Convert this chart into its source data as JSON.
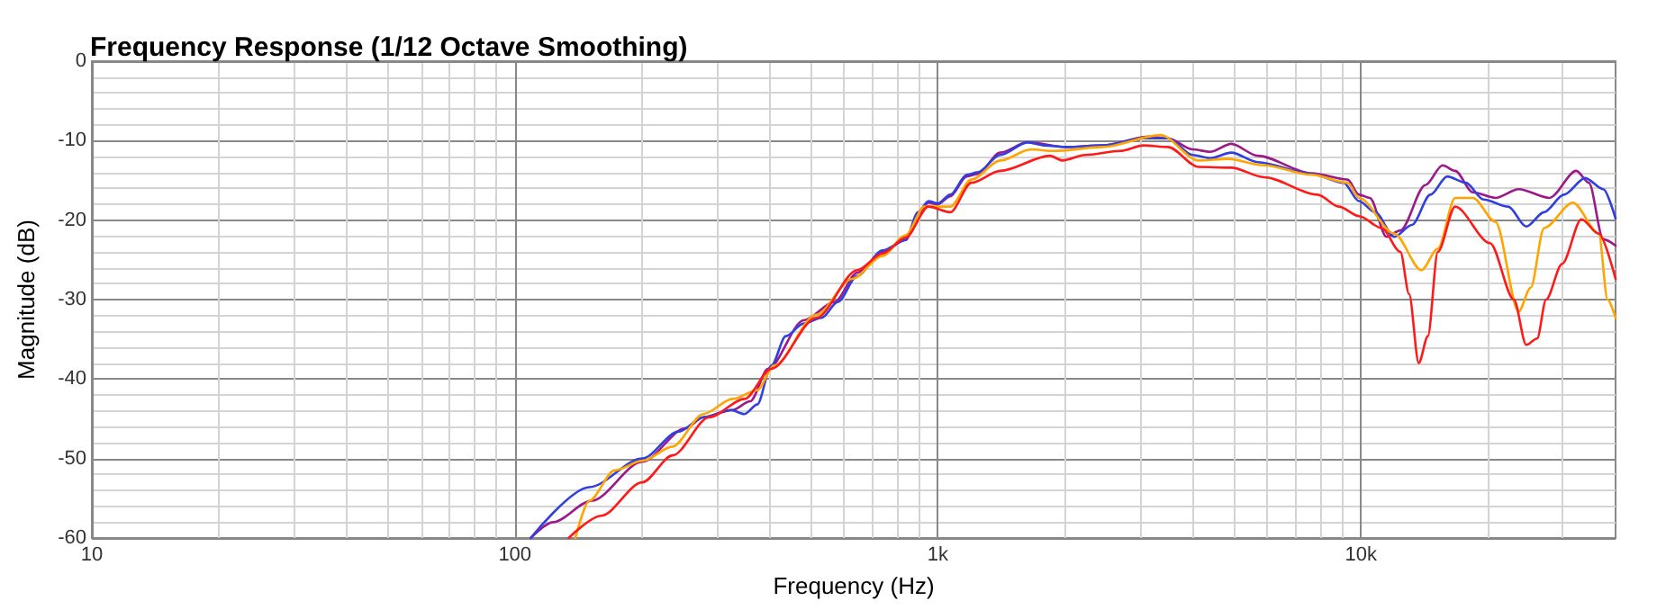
{
  "chart_data": {
    "type": "line",
    "title": "Frequency Response (1/12 Octave Smoothing)",
    "xlabel": "Frequency (Hz)",
    "ylabel": "Magnitude (dB)",
    "log": "x",
    "xlim": [
      10,
      40000
    ],
    "xticks": [
      10,
      100,
      {
        "value": 1000,
        "label": "1k"
      },
      {
        "value": 10000,
        "label": "10k"
      }
    ],
    "ylim": [
      -60,
      0
    ],
    "yticks": [
      -60,
      -50,
      -40,
      -30,
      -20,
      -10,
      0
    ],
    "grid": true,
    "marker": "none",
    "line_style": "solid",
    "series": [
      {
        "color": "#9b1a8a",
        "x": [
          109,
          123,
          152,
          200,
          253,
          279,
          327,
          360,
          397,
          482,
          570,
          645,
          740,
          839,
          897,
          950,
          1000,
          1070,
          1170,
          1240,
          1405,
          1630,
          2010,
          2450,
          3150,
          3500,
          4000,
          4400,
          4940,
          5700,
          7650,
          9300,
          9900,
          10500,
          11500,
          12400,
          14200,
          15600,
          16700,
          18400,
          20800,
          23600,
          27900,
          32300,
          34600,
          37400,
          40000
        ],
        "values": [
          -60,
          -58,
          -55.3,
          -50.4,
          -46.2,
          -44.8,
          -43.9,
          -42.8,
          -38.7,
          -32.6,
          -30.3,
          -26.6,
          -24,
          -22.5,
          -19.2,
          -17.8,
          -18,
          -17,
          -14.5,
          -14.2,
          -11.5,
          -10.2,
          -10.8,
          -10.6,
          -9.5,
          -9.7,
          -11.1,
          -11.4,
          -10.4,
          -11.9,
          -14.1,
          -14.9,
          -16.8,
          -17.2,
          -22.1,
          -21.3,
          -15.6,
          -13.1,
          -13.8,
          -16.5,
          -17.2,
          -16.1,
          -17.2,
          -13.8,
          -15.3,
          -22.4,
          -23.2
        ]
      },
      {
        "color": "#2f3fe0",
        "x": [
          109,
          150,
          200,
          244,
          279,
          324,
          349,
          374,
          404,
          437,
          482,
          531,
          580,
          645,
          740,
          839,
          897,
          950,
          1000,
          1070,
          1170,
          1240,
          1405,
          1630,
          1780,
          2010,
          2450,
          3060,
          3500,
          4000,
          4400,
          4940,
          5700,
          7650,
          9100,
          9900,
          10800,
          12000,
          13200,
          14600,
          16000,
          17700,
          19500,
          22300,
          24600,
          27100,
          30200,
          33900,
          37400,
          40000
        ],
        "values": [
          -60,
          -53.6,
          -50,
          -46.6,
          -44.8,
          -43.9,
          -44.4,
          -43.2,
          -38.3,
          -34.6,
          -33,
          -32.3,
          -30.3,
          -27,
          -23.8,
          -22.5,
          -19,
          -17.6,
          -17.9,
          -16.8,
          -14.3,
          -14,
          -11.8,
          -10.2,
          -10.6,
          -10.8,
          -10.6,
          -9.7,
          -9.7,
          -11.8,
          -12.2,
          -11.5,
          -12.7,
          -14.2,
          -15.3,
          -17.6,
          -19,
          -22.1,
          -20.6,
          -16.8,
          -14.5,
          -15.3,
          -17.4,
          -18.3,
          -20.8,
          -19,
          -16.8,
          -14.7,
          -16.1,
          -19.8
        ]
      },
      {
        "color": "#ffa500",
        "x": [
          139,
          150,
          172,
          200,
          236,
          279,
          327,
          374,
          410,
          516,
          627,
          740,
          839,
          929,
          1070,
          1200,
          1405,
          1660,
          1880,
          2450,
          3360,
          4130,
          4850,
          5900,
          7650,
          9300,
          9900,
          12000,
          13900,
          15200,
          16700,
          18400,
          20800,
          23600,
          25200,
          27100,
          31700,
          36500,
          38300,
          40000
        ],
        "values": [
          -60,
          -55.3,
          -51.5,
          -50.3,
          -48.5,
          -44.4,
          -42.5,
          -41.4,
          -38.3,
          -31.9,
          -27.4,
          -24.5,
          -21.9,
          -18.3,
          -18.3,
          -14.9,
          -12.5,
          -11.1,
          -11.3,
          -10.8,
          -9.3,
          -12.5,
          -12.3,
          -13.1,
          -14.3,
          -15.3,
          -17.2,
          -21.7,
          -26.3,
          -23.6,
          -17.2,
          -17.2,
          -20.2,
          -31.5,
          -28.5,
          -21,
          -17.8,
          -21.7,
          -30,
          -32.3
        ]
      },
      {
        "color": "#ff1a1a",
        "x": [
          134,
          160,
          200,
          236,
          288,
          349,
          404,
          516,
          645,
          740,
          839,
          950,
          1070,
          1200,
          1405,
          1840,
          1970,
          2230,
          2700,
          3060,
          3500,
          4130,
          4940,
          5900,
          7900,
          8870,
          9900,
          11200,
          12400,
          13000,
          13700,
          14400,
          15200,
          16700,
          20200,
          23000,
          24600,
          26100,
          27400,
          29900,
          33200,
          36500,
          40000
        ],
        "values": [
          -60,
          -57.2,
          -53,
          -49.6,
          -44.8,
          -42.5,
          -38.7,
          -32.3,
          -26.3,
          -24.2,
          -22.2,
          -18.3,
          -19,
          -15.3,
          -13.8,
          -11.9,
          -12.5,
          -11.8,
          -11.3,
          -10.6,
          -10.8,
          -13.3,
          -13.4,
          -14.6,
          -16.8,
          -18.3,
          -19.5,
          -21,
          -24,
          -29.3,
          -38,
          -34.6,
          -24,
          -18.3,
          -22.9,
          -30,
          -35.7,
          -34.9,
          -30,
          -25.5,
          -19.9,
          -21.7,
          -27.4
        ]
      }
    ]
  }
}
